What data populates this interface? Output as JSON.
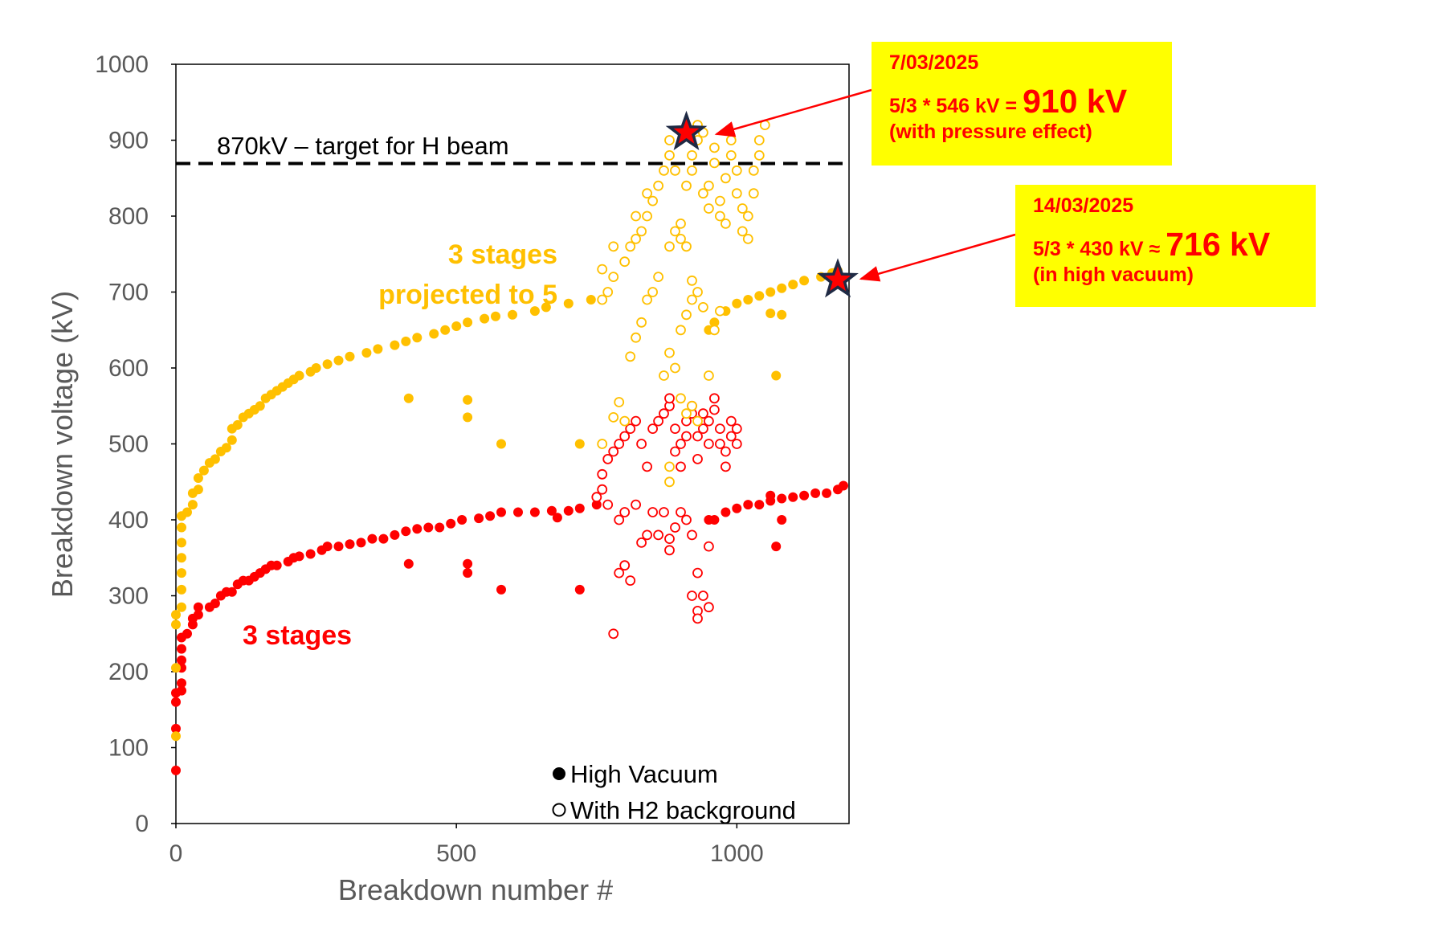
{
  "chart_data": {
    "type": "scatter",
    "title": "",
    "xlabel": "Breakdown number #",
    "ylabel": "Breakdown voltage (kV)",
    "xlim": [
      0,
      1200
    ],
    "ylim": [
      0,
      1000
    ],
    "xticks": [
      "0",
      "500",
      "1000"
    ],
    "yticks": [
      "0",
      "100",
      "200",
      "300",
      "400",
      "500",
      "600",
      "700",
      "800",
      "900",
      "1000"
    ],
    "target_line": {
      "y": 870,
      "label": "870kV – target for H beam"
    },
    "series_labels": {
      "five": [
        "3 stages",
        "projected to 5"
      ],
      "three": "3 stages"
    },
    "legend": {
      "filled": "High Vacuum",
      "open": "With H2 background"
    },
    "colors": {
      "three_stage": "#ff0000",
      "projected": "#ffc000",
      "target": "#000000",
      "annotation_bg": "#ffff00",
      "annotation_text": "#ff0000"
    },
    "series": [
      {
        "name": "High Vacuum",
        "color": "#ff0000",
        "marker": "filled",
        "points": [
          [
            0,
            70
          ],
          [
            0,
            125
          ],
          [
            0,
            160
          ],
          [
            0,
            172
          ],
          [
            10,
            175
          ],
          [
            10,
            185
          ],
          [
            10,
            205
          ],
          [
            10,
            215
          ],
          [
            10,
            230
          ],
          [
            10,
            245
          ],
          [
            20,
            250
          ],
          [
            30,
            262
          ],
          [
            30,
            270
          ],
          [
            40,
            275
          ],
          [
            40,
            285
          ],
          [
            60,
            285
          ],
          [
            70,
            290
          ],
          [
            80,
            300
          ],
          [
            90,
            305
          ],
          [
            100,
            305
          ],
          [
            110,
            315
          ],
          [
            120,
            320
          ],
          [
            130,
            320
          ],
          [
            140,
            325
          ],
          [
            150,
            330
          ],
          [
            160,
            335
          ],
          [
            170,
            340
          ],
          [
            180,
            340
          ],
          [
            200,
            345
          ],
          [
            210,
            350
          ],
          [
            220,
            352
          ],
          [
            240,
            355
          ],
          [
            260,
            360
          ],
          [
            270,
            365
          ],
          [
            290,
            365
          ],
          [
            310,
            368
          ],
          [
            330,
            370
          ],
          [
            350,
            375
          ],
          [
            370,
            375
          ],
          [
            390,
            380
          ],
          [
            410,
            385
          ],
          [
            430,
            388
          ],
          [
            450,
            390
          ],
          [
            470,
            390
          ],
          [
            490,
            395
          ],
          [
            510,
            400
          ],
          [
            540,
            402
          ],
          [
            560,
            405
          ],
          [
            580,
            410
          ],
          [
            610,
            410
          ],
          [
            640,
            410
          ],
          [
            670,
            412
          ],
          [
            700,
            412
          ],
          [
            720,
            415
          ],
          [
            750,
            420
          ],
          [
            950,
            400
          ],
          [
            960,
            400
          ],
          [
            980,
            410
          ],
          [
            1000,
            415
          ],
          [
            1020,
            420
          ],
          [
            1040,
            420
          ],
          [
            1060,
            425
          ],
          [
            1080,
            428
          ],
          [
            1100,
            430
          ],
          [
            1120,
            432
          ],
          [
            1140,
            435
          ],
          [
            1160,
            435
          ],
          [
            1180,
            440
          ],
          [
            1190,
            445
          ],
          [
            415,
            342
          ],
          [
            520,
            342
          ],
          [
            520,
            330
          ],
          [
            580,
            308
          ],
          [
            720,
            308
          ],
          [
            680,
            403
          ],
          [
            1070,
            365
          ],
          [
            1080,
            400
          ],
          [
            1060,
            432
          ]
        ]
      },
      {
        "name": "High Vacuum (3 stages projected to 5)",
        "color": "#ffc000",
        "marker": "filled",
        "points": [
          [
            0,
            115
          ],
          [
            0,
            205
          ],
          [
            0,
            262
          ],
          [
            0,
            275
          ],
          [
            10,
            285
          ],
          [
            10,
            308
          ],
          [
            10,
            330
          ],
          [
            10,
            350
          ],
          [
            10,
            370
          ],
          [
            10,
            390
          ],
          [
            10,
            405
          ],
          [
            20,
            410
          ],
          [
            30,
            420
          ],
          [
            30,
            435
          ],
          [
            40,
            440
          ],
          [
            40,
            455
          ],
          [
            50,
            465
          ],
          [
            60,
            475
          ],
          [
            70,
            480
          ],
          [
            80,
            490
          ],
          [
            90,
            495
          ],
          [
            100,
            505
          ],
          [
            100,
            520
          ],
          [
            110,
            525
          ],
          [
            120,
            535
          ],
          [
            130,
            540
          ],
          [
            140,
            545
          ],
          [
            150,
            550
          ],
          [
            160,
            560
          ],
          [
            170,
            565
          ],
          [
            180,
            570
          ],
          [
            190,
            575
          ],
          [
            200,
            580
          ],
          [
            210,
            585
          ],
          [
            220,
            590
          ],
          [
            240,
            595
          ],
          [
            250,
            600
          ],
          [
            270,
            605
          ],
          [
            290,
            610
          ],
          [
            310,
            615
          ],
          [
            340,
            620
          ],
          [
            360,
            625
          ],
          [
            390,
            630
          ],
          [
            410,
            635
          ],
          [
            430,
            640
          ],
          [
            460,
            645
          ],
          [
            480,
            650
          ],
          [
            500,
            655
          ],
          [
            520,
            660
          ],
          [
            550,
            665
          ],
          [
            570,
            668
          ],
          [
            600,
            670
          ],
          [
            640,
            675
          ],
          [
            660,
            680
          ],
          [
            700,
            685
          ],
          [
            740,
            690
          ],
          [
            950,
            650
          ],
          [
            960,
            660
          ],
          [
            980,
            675
          ],
          [
            1000,
            685
          ],
          [
            1020,
            690
          ],
          [
            1040,
            695
          ],
          [
            1060,
            700
          ],
          [
            1080,
            705
          ],
          [
            1100,
            710
          ],
          [
            1120,
            715
          ],
          [
            1150,
            720
          ],
          [
            1170,
            725
          ],
          [
            1180,
            728
          ],
          [
            415,
            560
          ],
          [
            520,
            558
          ],
          [
            520,
            535
          ],
          [
            580,
            500
          ],
          [
            720,
            500
          ],
          [
            1070,
            590
          ],
          [
            1080,
            670
          ],
          [
            1060,
            672
          ]
        ]
      },
      {
        "name": "With H2 background",
        "color": "#ff0000",
        "marker": "open",
        "points": [
          [
            780,
            250
          ],
          [
            790,
            330
          ],
          [
            800,
            340
          ],
          [
            810,
            320
          ],
          [
            750,
            430
          ],
          [
            760,
            440
          ],
          [
            770,
            420
          ],
          [
            790,
            400
          ],
          [
            800,
            410
          ],
          [
            820,
            420
          ],
          [
            830,
            370
          ],
          [
            840,
            380
          ],
          [
            850,
            410
          ],
          [
            860,
            380
          ],
          [
            870,
            410
          ],
          [
            880,
            360
          ],
          [
            880,
            375
          ],
          [
            890,
            390
          ],
          [
            900,
            410
          ],
          [
            910,
            400
          ],
          [
            920,
            380
          ],
          [
            920,
            300
          ],
          [
            930,
            330
          ],
          [
            930,
            280
          ],
          [
            930,
            270
          ],
          [
            940,
            300
          ],
          [
            950,
            285
          ],
          [
            950,
            365
          ],
          [
            760,
            460
          ],
          [
            770,
            480
          ],
          [
            780,
            490
          ],
          [
            790,
            500
          ],
          [
            800,
            510
          ],
          [
            810,
            520
          ],
          [
            820,
            530
          ],
          [
            830,
            500
          ],
          [
            840,
            470
          ],
          [
            850,
            520
          ],
          [
            860,
            530
          ],
          [
            870,
            540
          ],
          [
            880,
            550
          ],
          [
            880,
            560
          ],
          [
            890,
            520
          ],
          [
            890,
            490
          ],
          [
            900,
            470
          ],
          [
            900,
            500
          ],
          [
            910,
            510
          ],
          [
            910,
            530
          ],
          [
            920,
            540
          ],
          [
            920,
            550
          ],
          [
            930,
            480
          ],
          [
            930,
            510
          ],
          [
            940,
            520
          ],
          [
            940,
            540
          ],
          [
            950,
            500
          ],
          [
            950,
            530
          ],
          [
            960,
            560
          ],
          [
            960,
            545
          ],
          [
            970,
            520
          ],
          [
            970,
            500
          ],
          [
            980,
            470
          ],
          [
            980,
            490
          ],
          [
            990,
            510
          ],
          [
            990,
            530
          ],
          [
            1000,
            500
          ],
          [
            1000,
            520
          ]
        ]
      },
      {
        "name": "With H2 background (3 stages projected to 5)",
        "color": "#ffc000",
        "marker": "open",
        "points": [
          [
            780,
            535
          ],
          [
            790,
            555
          ],
          [
            800,
            530
          ],
          [
            810,
            615
          ],
          [
            820,
            640
          ],
          [
            830,
            660
          ],
          [
            840,
            690
          ],
          [
            850,
            700
          ],
          [
            870,
            590
          ],
          [
            880,
            620
          ],
          [
            890,
            600
          ],
          [
            900,
            650
          ],
          [
            910,
            670
          ],
          [
            920,
            690
          ],
          [
            920,
            715
          ],
          [
            930,
            700
          ],
          [
            940,
            680
          ],
          [
            950,
            590
          ],
          [
            960,
            650
          ],
          [
            970,
            675
          ],
          [
            760,
            690
          ],
          [
            770,
            700
          ],
          [
            780,
            720
          ],
          [
            800,
            740
          ],
          [
            810,
            760
          ],
          [
            820,
            770
          ],
          [
            830,
            780
          ],
          [
            840,
            800
          ],
          [
            850,
            820
          ],
          [
            860,
            840
          ],
          [
            870,
            860
          ],
          [
            880,
            880
          ],
          [
            880,
            900
          ],
          [
            890,
            860
          ],
          [
            890,
            780
          ],
          [
            900,
            790
          ],
          [
            900,
            770
          ],
          [
            910,
            760
          ],
          [
            910,
            840
          ],
          [
            920,
            860
          ],
          [
            920,
            880
          ],
          [
            930,
            900
          ],
          [
            930,
            920
          ],
          [
            940,
            910
          ],
          [
            940,
            830
          ],
          [
            950,
            810
          ],
          [
            950,
            840
          ],
          [
            960,
            870
          ],
          [
            960,
            890
          ],
          [
            970,
            800
          ],
          [
            970,
            820
          ],
          [
            980,
            790
          ],
          [
            980,
            850
          ],
          [
            990,
            880
          ],
          [
            990,
            900
          ],
          [
            1000,
            860
          ],
          [
            1000,
            830
          ],
          [
            1010,
            810
          ],
          [
            1010,
            780
          ],
          [
            1020,
            770
          ],
          [
            1020,
            800
          ],
          [
            1030,
            830
          ],
          [
            1030,
            860
          ],
          [
            1040,
            880
          ],
          [
            1040,
            900
          ],
          [
            1050,
            920
          ],
          [
            760,
            730
          ],
          [
            780,
            760
          ],
          [
            820,
            800
          ],
          [
            840,
            830
          ],
          [
            860,
            720
          ],
          [
            880,
            760
          ],
          [
            900,
            560
          ],
          [
            910,
            540
          ],
          [
            920,
            550
          ],
          [
            930,
            530
          ],
          [
            880,
            470
          ],
          [
            880,
            450
          ],
          [
            760,
            500
          ]
        ]
      },
      {
        "name": "stars",
        "color": "#ff0000",
        "marker": "star",
        "points": [
          [
            910,
            910
          ],
          [
            1180,
            716
          ]
        ]
      }
    ],
    "annotations": [
      {
        "date": "7/03/2025",
        "expr": "5/3 * 546 kV =",
        "value": "910 kV",
        "note": "(with pressure effect)",
        "target": [
          910,
          910
        ]
      },
      {
        "date": "14/03/2025",
        "expr": "5/3 * 430 kV ≈",
        "value": "716 kV",
        "note": "(in high vacuum)",
        "target": [
          1180,
          716
        ]
      }
    ]
  }
}
